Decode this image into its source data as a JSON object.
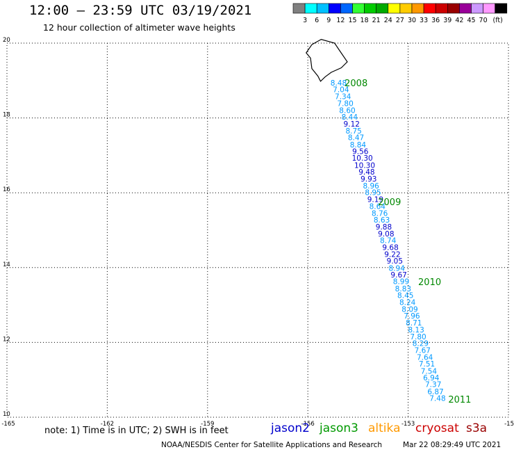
{
  "header": {
    "title": "12:00 – 23:59 UTC 03/19/2021",
    "subtitle": "12 hour collection of altimeter wave heights"
  },
  "legend": {
    "colors": [
      "#808080",
      "#00ffff",
      "#00c0ff",
      "#0000ff",
      "#0066ff",
      "#33ff33",
      "#00cc00",
      "#00aa00",
      "#ffff00",
      "#ffcc00",
      "#ff9900",
      "#ff0000",
      "#cc0000",
      "#990000",
      "#990099",
      "#cc99ff",
      "#ff99ff",
      "#000000"
    ],
    "labels": [
      "3",
      "6",
      "9",
      "12",
      "15",
      "18",
      "21",
      "24",
      "27",
      "30",
      "33",
      "36",
      "39",
      "42",
      "45",
      "70"
    ],
    "unit": "(ft)"
  },
  "map": {
    "lon_ticks": [
      "-165",
      "-162",
      "-159",
      "-156",
      "-153",
      "-15"
    ],
    "lat_ticks": [
      "20",
      "18",
      "16",
      "14",
      "12",
      "10"
    ],
    "time_labels": [
      {
        "text": "2008",
        "lon": -154.9,
        "lat": 18.94
      },
      {
        "text": "2009",
        "lon": -153.9,
        "lat": 15.76
      },
      {
        "text": "2010",
        "lon": -152.7,
        "lat": 13.62
      },
      {
        "text": "2011",
        "lon": -151.8,
        "lat": 10.48
      }
    ],
    "wave_heights": [
      {
        "v": "8.48",
        "lon": -155.08,
        "lat": 18.94,
        "c": "#0099ff"
      },
      {
        "v": "7.04",
        "lon": -155.01,
        "lat": 18.76,
        "c": "#0099ff"
      },
      {
        "v": "7.34",
        "lon": -154.95,
        "lat": 18.58,
        "c": "#0099ff"
      },
      {
        "v": "7.80",
        "lon": -154.88,
        "lat": 18.39,
        "c": "#0099ff"
      },
      {
        "v": "8.60",
        "lon": -154.82,
        "lat": 18.21,
        "c": "#0099ff"
      },
      {
        "v": "8.44",
        "lon": -154.75,
        "lat": 18.03,
        "c": "#0099ff"
      },
      {
        "v": "9.12",
        "lon": -154.69,
        "lat": 17.84,
        "c": "#0000cc"
      },
      {
        "v": "8.75",
        "lon": -154.63,
        "lat": 17.66,
        "c": "#0099ff"
      },
      {
        "v": "8.47",
        "lon": -154.56,
        "lat": 17.48,
        "c": "#0099ff"
      },
      {
        "v": "8.84",
        "lon": -154.5,
        "lat": 17.29,
        "c": "#0099ff"
      },
      {
        "v": "9.56",
        "lon": -154.43,
        "lat": 17.11,
        "c": "#0000cc"
      },
      {
        "v": "10.30",
        "lon": -154.37,
        "lat": 16.93,
        "c": "#0000cc"
      },
      {
        "v": "10.30",
        "lon": -154.3,
        "lat": 16.74,
        "c": "#0000cc"
      },
      {
        "v": "9.48",
        "lon": -154.24,
        "lat": 16.56,
        "c": "#0000cc"
      },
      {
        "v": "9.93",
        "lon": -154.18,
        "lat": 16.38,
        "c": "#0000cc"
      },
      {
        "v": "8.96",
        "lon": -154.11,
        "lat": 16.19,
        "c": "#0099ff"
      },
      {
        "v": "8.95",
        "lon": -154.05,
        "lat": 16.01,
        "c": "#0099ff"
      },
      {
        "v": "9.19",
        "lon": -153.98,
        "lat": 15.83,
        "c": "#0000cc"
      },
      {
        "v": "8.64",
        "lon": -153.92,
        "lat": 15.64,
        "c": "#0099ff"
      },
      {
        "v": "8.76",
        "lon": -153.85,
        "lat": 15.46,
        "c": "#0099ff"
      },
      {
        "v": "8.63",
        "lon": -153.79,
        "lat": 15.28,
        "c": "#0099ff"
      },
      {
        "v": "9.88",
        "lon": -153.73,
        "lat": 15.09,
        "c": "#0000cc"
      },
      {
        "v": "9.08",
        "lon": -153.66,
        "lat": 14.91,
        "c": "#0000cc"
      },
      {
        "v": "8.74",
        "lon": -153.6,
        "lat": 14.73,
        "c": "#0099ff"
      },
      {
        "v": "9.68",
        "lon": -153.53,
        "lat": 14.54,
        "c": "#0000cc"
      },
      {
        "v": "9.22",
        "lon": -153.47,
        "lat": 14.36,
        "c": "#0000cc"
      },
      {
        "v": "9.05",
        "lon": -153.4,
        "lat": 14.18,
        "c": "#0000cc"
      },
      {
        "v": "8.94",
        "lon": -153.34,
        "lat": 13.99,
        "c": "#0099ff"
      },
      {
        "v": "9.67",
        "lon": -153.28,
        "lat": 13.81,
        "c": "#0000cc"
      },
      {
        "v": "8.99",
        "lon": -153.21,
        "lat": 13.63,
        "c": "#0099ff"
      },
      {
        "v": "8.83",
        "lon": -153.15,
        "lat": 13.44,
        "c": "#0099ff"
      },
      {
        "v": "8.45",
        "lon": -153.08,
        "lat": 13.26,
        "c": "#0099ff"
      },
      {
        "v": "8.24",
        "lon": -153.02,
        "lat": 13.08,
        "c": "#0099ff"
      },
      {
        "v": "8.09",
        "lon": -152.95,
        "lat": 12.89,
        "c": "#0099ff"
      },
      {
        "v": "7.96",
        "lon": -152.89,
        "lat": 12.71,
        "c": "#0099ff"
      },
      {
        "v": "8.71",
        "lon": -152.83,
        "lat": 12.53,
        "c": "#0099ff"
      },
      {
        "v": "8.13",
        "lon": -152.76,
        "lat": 12.34,
        "c": "#0099ff"
      },
      {
        "v": "7.80",
        "lon": -152.7,
        "lat": 12.16,
        "c": "#0099ff"
      },
      {
        "v": "8.29",
        "lon": -152.63,
        "lat": 11.98,
        "c": "#0099ff"
      },
      {
        "v": "7.67",
        "lon": -152.57,
        "lat": 11.79,
        "c": "#0099ff"
      },
      {
        "v": "7.64",
        "lon": -152.5,
        "lat": 11.61,
        "c": "#0099ff"
      },
      {
        "v": "7.51",
        "lon": -152.44,
        "lat": 11.43,
        "c": "#0099ff"
      },
      {
        "v": "7.54",
        "lon": -152.38,
        "lat": 11.24,
        "c": "#0099ff"
      },
      {
        "v": "6.94",
        "lon": -152.31,
        "lat": 11.06,
        "c": "#0099ff"
      },
      {
        "v": "7.37",
        "lon": -152.25,
        "lat": 10.88,
        "c": "#0099ff"
      },
      {
        "v": "6.87",
        "lon": -152.18,
        "lat": 10.69,
        "c": "#0099ff"
      },
      {
        "v": "7.48",
        "lon": -152.12,
        "lat": 10.51,
        "c": "#0099ff"
      }
    ]
  },
  "note": "note: 1) Time is in UTC; 2) SWH is in feet",
  "satellites": [
    {
      "name": "jason2",
      "color": "#0000cc"
    },
    {
      "name": "jason3",
      "color": "#009900"
    },
    {
      "name": "altika",
      "color": "#ff9900"
    },
    {
      "name": "cryosat",
      "color": "#cc0000"
    },
    {
      "name": "s3a",
      "color": "#990000"
    }
  ],
  "footer": {
    "credit": "NOAA/NESDIS Center for Satellite Applications and Research",
    "generated": "Mar 22 08:29:49 UTC 2021"
  }
}
